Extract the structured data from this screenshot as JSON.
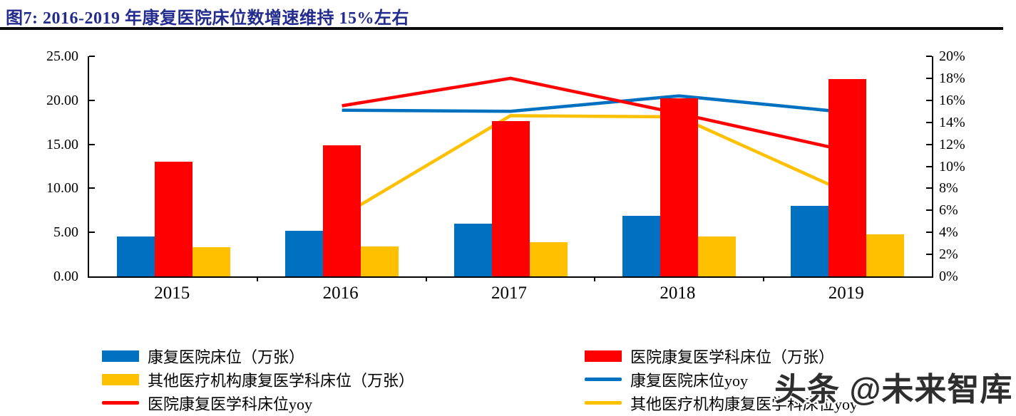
{
  "title": "图7:  2016-2019 年康复医院床位数增速维持 15%左右",
  "watermark": "头条 @未来智库",
  "chart_data": {
    "type": "bar",
    "subtype": "grouped bars with overlaid yoy lines (dual axis)",
    "categories": [
      "2015",
      "2016",
      "2017",
      "2018",
      "2019"
    ],
    "bar_series": [
      {
        "key": "rehab-hospital-beds",
        "name": "康复医院床位（万张）",
        "color": "#0070C0",
        "values": [
          4.5,
          5.2,
          6.0,
          6.9,
          8.0
        ]
      },
      {
        "key": "hospital-rehab-dept-beds",
        "name": "医院康复医学科床位（万张）",
        "color": "#FF0000",
        "values": [
          13.0,
          14.9,
          17.6,
          20.2,
          22.4
        ]
      },
      {
        "key": "other-institution-rehab-beds",
        "name": "其他医疗机构康复医学科床位（万张）",
        "color": "#FFC000",
        "values": [
          3.3,
          3.4,
          3.9,
          4.5,
          4.8
        ]
      }
    ],
    "line_series": [
      {
        "key": "rehab-hospital-beds-yoy",
        "name": "康复医院床位yoy",
        "color": "#0070C0",
        "axis": "right",
        "values": [
          null,
          15.1,
          15.0,
          16.4,
          14.9
        ]
      },
      {
        "key": "hospital-rehab-dept-beds-yoy",
        "name": "医院康复医学科床位yoy",
        "color": "#FF0000",
        "axis": "right",
        "values": [
          null,
          15.5,
          18.0,
          14.8,
          11.4
        ]
      },
      {
        "key": "other-institution-rehab-beds-yoy",
        "name": "其他医疗机构康复医学科床位yoy",
        "color": "#FFC000",
        "axis": "right",
        "values": [
          null,
          5.5,
          14.6,
          14.5,
          7.6
        ]
      }
    ],
    "left_axis": {
      "min": 0,
      "max": 25,
      "tick_labels": [
        "25.00",
        "20.00",
        "15.00",
        "10.00",
        "5.00",
        "0.00"
      ]
    },
    "right_axis": {
      "min": 0,
      "max": 20,
      "tick_labels": [
        "20%",
        "18%",
        "16%",
        "14%",
        "12%",
        "10%",
        "8%",
        "6%",
        "4%",
        "2%",
        "0%"
      ],
      "unit": "%"
    },
    "grid": false,
    "legend_position": "bottom, two columns",
    "legend": {
      "left_column": [
        {
          "label": "康复医院床位（万张）",
          "swatch": "bar",
          "color": "#0070C0"
        },
        {
          "label": "其他医疗机构康复医学科床位（万张）",
          "swatch": "bar",
          "color": "#FFC000"
        },
        {
          "label": "医院康复医学科床位yoy",
          "swatch": "line",
          "color": "#FF0000"
        }
      ],
      "right_column": [
        {
          "label": "医院康复医学科床位（万张）",
          "swatch": "bar",
          "color": "#FF0000"
        },
        {
          "label": "康复医院床位yoy",
          "swatch": "line",
          "color": "#0070C0"
        },
        {
          "label": "其他医疗机构康复医学科床位yoy",
          "swatch": "line",
          "color": "#FFC000"
        }
      ]
    }
  }
}
